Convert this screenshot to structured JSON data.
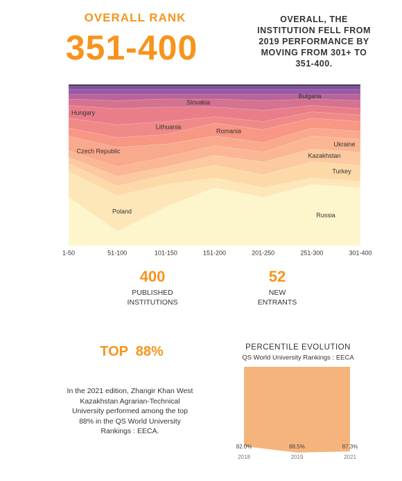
{
  "header": {
    "label": "OVERALL RANK",
    "rank": "351-400",
    "summary": "OVERALL, THE INSTITUTION FELL FROM 2019 PERFORMANCE BY MOVING FROM 301+ TO 351-400."
  },
  "stats": [
    {
      "value": 400,
      "label": "PUBLISHED INSTITUTIONS"
    },
    {
      "value": 52,
      "label": "NEW ENTRANTS"
    }
  ],
  "top": {
    "title": "TOP  88%",
    "text": "In the 2021 edition, Zhangir Khan West Kazakhstan Agrarian-Technical University performed among the top 88% in the QS World University Rankings : EECA."
  },
  "chart_data": [
    {
      "type": "stream",
      "categories": [
        "1-50",
        "51-100",
        "101-150",
        "151-200",
        "201-250",
        "251-300",
        "301-400"
      ],
      "ylim": [
        0,
        100
      ],
      "series": [
        {
          "name": "Russia",
          "color": "#fdf6cc",
          "values": [
            30,
            9,
            24,
            36,
            30,
            38,
            36
          ]
        },
        {
          "name": "Poland",
          "color": "#fde6b8",
          "values": [
            16,
            22,
            14,
            6,
            6,
            4,
            4
          ]
        },
        {
          "name": "Turkey",
          "color": "#fdd9a8",
          "values": [
            5,
            6,
            6,
            8,
            8,
            10,
            10
          ]
        },
        {
          "name": "Kazakhstan",
          "color": "#fcc9a0",
          "values": [
            4,
            6,
            5,
            6,
            8,
            8,
            8
          ]
        },
        {
          "name": "Ukraine",
          "color": "#fbb693",
          "values": [
            4,
            6,
            6,
            6,
            6,
            8,
            8
          ]
        },
        {
          "name": "Czech Republic",
          "color": "#f9a98c",
          "values": [
            9,
            12,
            8,
            6,
            6,
            5,
            5
          ]
        },
        {
          "name": "Romania",
          "color": "#f79784",
          "values": [
            5,
            6,
            6,
            8,
            8,
            6,
            6
          ]
        },
        {
          "name": "Lithuania",
          "color": "#f08a88",
          "values": [
            6,
            8,
            8,
            4,
            5,
            4,
            4
          ]
        },
        {
          "name": "Hungary",
          "color": "#e97e8a",
          "values": [
            8,
            10,
            9,
            6,
            7,
            4,
            4
          ]
        },
        {
          "name": "Slovakia",
          "color": "#d4728f",
          "values": [
            4,
            5,
            5,
            5,
            6,
            4,
            5
          ]
        },
        {
          "name": "Bulgaria",
          "color": "#b8649a",
          "values": [
            3,
            4,
            3,
            3,
            4,
            3,
            4
          ]
        },
        {
          "color": "#9a5aa8",
          "values": [
            3,
            3,
            3,
            3,
            3,
            3,
            3
          ]
        },
        {
          "color": "#7b4f9e",
          "values": [
            2,
            2,
            2,
            2,
            2,
            2,
            2
          ]
        },
        {
          "color": "#3b3346",
          "values": [
            1,
            1,
            1,
            1,
            1,
            1,
            1
          ]
        }
      ]
    },
    {
      "type": "area",
      "title": "PERCENTILE EVOLUTION",
      "subtitle": "QS World University Rankings : EECA",
      "color": "#f5b47c",
      "categories": [
        "2018",
        "2019",
        "2021"
      ],
      "values": [
        82.0,
        88.5,
        87.3
      ],
      "value_labels": [
        "82.0%",
        "88.5%",
        "87.3%"
      ],
      "ylim": [
        0,
        100
      ]
    }
  ]
}
